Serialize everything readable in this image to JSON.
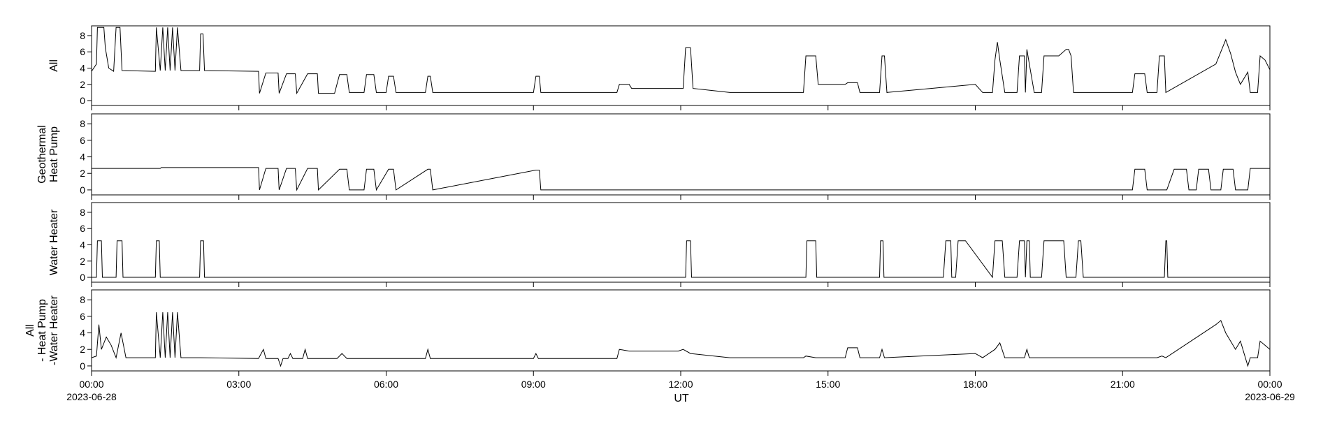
{
  "chart_data": {
    "type": "line",
    "xlabel": "UT",
    "x_ticks": [
      {
        "t": 0,
        "label": "00:00",
        "sublabel": "2023-06-28"
      },
      {
        "t": 3,
        "label": "03:00",
        "sublabel": ""
      },
      {
        "t": 6,
        "label": "06:00",
        "sublabel": ""
      },
      {
        "t": 9,
        "label": "09:00",
        "sublabel": ""
      },
      {
        "t": 12,
        "label": "12:00",
        "sublabel": ""
      },
      {
        "t": 15,
        "label": "15:00",
        "sublabel": ""
      },
      {
        "t": 18,
        "label": "18:00",
        "sublabel": ""
      },
      {
        "t": 21,
        "label": "21:00",
        "sublabel": ""
      },
      {
        "t": 24,
        "label": "00:00",
        "sublabel": "2023-06-29"
      }
    ],
    "xlim": [
      0,
      24
    ],
    "ylim": [
      -0.6,
      9.2
    ],
    "y_ticks": [
      0,
      2,
      4,
      6,
      8
    ],
    "panels": [
      {
        "ylabel_lines": [
          "All"
        ],
        "points": [
          [
            0,
            3.6
          ],
          [
            0.1,
            4.5
          ],
          [
            0.12,
            9
          ],
          [
            0.25,
            9
          ],
          [
            0.28,
            6.5
          ],
          [
            0.35,
            4
          ],
          [
            0.45,
            3.6
          ],
          [
            0.5,
            9
          ],
          [
            0.58,
            9
          ],
          [
            0.62,
            3.7
          ],
          [
            1.3,
            3.6
          ],
          [
            1.32,
            9
          ],
          [
            1.4,
            3.7
          ],
          [
            1.45,
            9
          ],
          [
            1.5,
            3.7
          ],
          [
            1.55,
            9
          ],
          [
            1.6,
            3.7
          ],
          [
            1.65,
            9
          ],
          [
            1.7,
            3.7
          ],
          [
            1.75,
            9
          ],
          [
            1.82,
            3.7
          ],
          [
            2.2,
            3.7
          ],
          [
            2.22,
            8.2
          ],
          [
            2.27,
            8.2
          ],
          [
            2.3,
            3.7
          ],
          [
            3.4,
            3.6
          ],
          [
            3.42,
            0.9
          ],
          [
            3.55,
            3.4
          ],
          [
            3.8,
            3.4
          ],
          [
            3.82,
            0.9
          ],
          [
            3.97,
            3.3
          ],
          [
            4.15,
            3.3
          ],
          [
            4.18,
            0.9
          ],
          [
            4.4,
            3.3
          ],
          [
            4.6,
            3.3
          ],
          [
            4.62,
            0.9
          ],
          [
            4.95,
            0.9
          ],
          [
            5.05,
            3.2
          ],
          [
            5.2,
            3.2
          ],
          [
            5.25,
            1
          ],
          [
            5.55,
            1
          ],
          [
            5.6,
            3.2
          ],
          [
            5.75,
            3.2
          ],
          [
            5.8,
            1
          ],
          [
            6,
            1
          ],
          [
            6.05,
            3
          ],
          [
            6.15,
            3
          ],
          [
            6.2,
            1
          ],
          [
            6.8,
            1
          ],
          [
            6.85,
            3
          ],
          [
            6.9,
            3
          ],
          [
            6.95,
            1
          ],
          [
            9,
            1
          ],
          [
            9.05,
            3
          ],
          [
            9.12,
            3
          ],
          [
            9.15,
            1
          ],
          [
            10.7,
            1
          ],
          [
            10.75,
            2
          ],
          [
            10.95,
            2
          ],
          [
            11,
            1.5
          ],
          [
            11.95,
            1.5
          ],
          [
            12.05,
            1.5
          ],
          [
            12.1,
            6.5
          ],
          [
            12.2,
            6.5
          ],
          [
            12.25,
            1.5
          ],
          [
            13,
            1
          ],
          [
            14.5,
            1
          ],
          [
            14.55,
            5.5
          ],
          [
            14.75,
            5.5
          ],
          [
            14.8,
            2
          ],
          [
            15.35,
            2
          ],
          [
            15.4,
            2.2
          ],
          [
            15.6,
            2.2
          ],
          [
            15.65,
            1
          ],
          [
            16.05,
            1
          ],
          [
            16.1,
            5.5
          ],
          [
            16.15,
            5.5
          ],
          [
            16.2,
            1
          ],
          [
            18,
            2
          ],
          [
            18.15,
            1
          ],
          [
            18.35,
            1
          ],
          [
            18.4,
            5
          ],
          [
            18.45,
            7.2
          ],
          [
            18.5,
            5
          ],
          [
            18.6,
            1
          ],
          [
            18.85,
            1
          ],
          [
            18.9,
            5.5
          ],
          [
            19,
            5.5
          ],
          [
            19.02,
            1
          ],
          [
            19.05,
            6.3
          ],
          [
            19.1,
            4.5
          ],
          [
            19.2,
            1
          ],
          [
            19.35,
            1
          ],
          [
            19.4,
            5.5
          ],
          [
            19.7,
            5.5
          ],
          [
            19.85,
            6.3
          ],
          [
            19.9,
            6.3
          ],
          [
            19.95,
            5.5
          ],
          [
            20,
            1
          ],
          [
            20.95,
            1
          ],
          [
            21.2,
            1
          ],
          [
            21.25,
            3.3
          ],
          [
            21.45,
            3.3
          ],
          [
            21.5,
            1
          ],
          [
            21.7,
            1
          ],
          [
            21.75,
            5.5
          ],
          [
            21.85,
            5.5
          ],
          [
            21.88,
            1
          ],
          [
            22.9,
            4.5
          ],
          [
            23,
            6
          ],
          [
            23.1,
            7.5
          ],
          [
            23.2,
            5.8
          ],
          [
            23.3,
            3.5
          ],
          [
            23.4,
            2
          ],
          [
            23.55,
            3.5
          ],
          [
            23.6,
            1
          ],
          [
            23.75,
            1
          ],
          [
            23.8,
            5.5
          ],
          [
            23.9,
            5
          ],
          [
            24,
            3.8
          ]
        ]
      },
      {
        "ylabel_lines": [
          "Geothermal",
          "Heat Pump"
        ],
        "points": [
          [
            0,
            2.6
          ],
          [
            1.4,
            2.6
          ],
          [
            1.42,
            2.7
          ],
          [
            3.4,
            2.7
          ],
          [
            3.42,
            0
          ],
          [
            3.55,
            2.6
          ],
          [
            3.8,
            2.6
          ],
          [
            3.82,
            0
          ],
          [
            3.97,
            2.6
          ],
          [
            4.15,
            2.6
          ],
          [
            4.18,
            0
          ],
          [
            4.4,
            2.6
          ],
          [
            4.6,
            2.6
          ],
          [
            4.62,
            0
          ],
          [
            5.05,
            2.5
          ],
          [
            5.2,
            2.5
          ],
          [
            5.25,
            0
          ],
          [
            5.55,
            0
          ],
          [
            5.6,
            2.5
          ],
          [
            5.75,
            2.5
          ],
          [
            5.8,
            0
          ],
          [
            6.05,
            2.5
          ],
          [
            6.15,
            2.5
          ],
          [
            6.2,
            0
          ],
          [
            6.85,
            2.5
          ],
          [
            6.9,
            2.5
          ],
          [
            6.95,
            0
          ],
          [
            9.05,
            2.4
          ],
          [
            9.12,
            2.4
          ],
          [
            9.15,
            0
          ],
          [
            21.2,
            0
          ],
          [
            21.25,
            2.5
          ],
          [
            21.45,
            2.5
          ],
          [
            21.5,
            0
          ],
          [
            21.9,
            0
          ],
          [
            22.05,
            2.5
          ],
          [
            22.3,
            2.5
          ],
          [
            22.35,
            0
          ],
          [
            22.5,
            0
          ],
          [
            22.55,
            2.5
          ],
          [
            22.75,
            2.5
          ],
          [
            22.8,
            0
          ],
          [
            23,
            0
          ],
          [
            23.05,
            2.5
          ],
          [
            23.25,
            2.5
          ],
          [
            23.3,
            0
          ],
          [
            23.55,
            0
          ],
          [
            23.6,
            2.6
          ],
          [
            24,
            2.6
          ]
        ]
      },
      {
        "ylabel_lines": [
          "Water Heater"
        ],
        "points": [
          [
            0,
            0
          ],
          [
            0.1,
            0
          ],
          [
            0.12,
            4.5
          ],
          [
            0.2,
            4.5
          ],
          [
            0.22,
            0
          ],
          [
            0.5,
            0
          ],
          [
            0.52,
            4.5
          ],
          [
            0.62,
            4.5
          ],
          [
            0.64,
            0
          ],
          [
            1.3,
            0
          ],
          [
            1.32,
            4.5
          ],
          [
            1.38,
            4.5
          ],
          [
            1.4,
            0
          ],
          [
            2.2,
            0
          ],
          [
            2.22,
            4.5
          ],
          [
            2.28,
            4.5
          ],
          [
            2.3,
            0
          ],
          [
            12.1,
            0
          ],
          [
            12.12,
            4.5
          ],
          [
            12.2,
            4.5
          ],
          [
            12.22,
            0
          ],
          [
            14.55,
            0
          ],
          [
            14.57,
            4.5
          ],
          [
            14.75,
            4.5
          ],
          [
            14.77,
            0
          ],
          [
            16.05,
            0
          ],
          [
            16.07,
            4.5
          ],
          [
            16.12,
            4.5
          ],
          [
            16.14,
            0
          ],
          [
            17.35,
            0
          ],
          [
            17.4,
            4.5
          ],
          [
            17.5,
            4.5
          ],
          [
            17.52,
            0
          ],
          [
            17.6,
            0
          ],
          [
            17.65,
            4.5
          ],
          [
            17.8,
            4.5
          ],
          [
            18.35,
            0
          ],
          [
            18.4,
            4.5
          ],
          [
            18.55,
            4.5
          ],
          [
            18.6,
            0
          ],
          [
            18.85,
            0
          ],
          [
            18.9,
            4.5
          ],
          [
            19,
            4.5
          ],
          [
            19.02,
            0
          ],
          [
            19.05,
            4.5
          ],
          [
            19.1,
            4.5
          ],
          [
            19.12,
            0
          ],
          [
            19.35,
            0
          ],
          [
            19.4,
            4.5
          ],
          [
            19.8,
            4.5
          ],
          [
            19.85,
            0
          ],
          [
            20.05,
            0
          ],
          [
            20.1,
            4.5
          ],
          [
            20.15,
            4.5
          ],
          [
            20.2,
            0
          ],
          [
            21.85,
            0
          ],
          [
            21.88,
            4.5
          ],
          [
            21.9,
            4.5
          ],
          [
            21.92,
            0
          ],
          [
            24,
            0
          ]
        ]
      },
      {
        "ylabel_lines": [
          "All",
          "- Heat Pump",
          "-Water Heater"
        ],
        "points": [
          [
            0,
            1
          ],
          [
            0.1,
            1.2
          ],
          [
            0.15,
            5
          ],
          [
            0.2,
            2
          ],
          [
            0.3,
            3.5
          ],
          [
            0.4,
            2.5
          ],
          [
            0.5,
            1
          ],
          [
            0.6,
            4
          ],
          [
            0.65,
            2.5
          ],
          [
            0.7,
            1
          ],
          [
            1.3,
            1
          ],
          [
            1.32,
            6.5
          ],
          [
            1.4,
            1
          ],
          [
            1.45,
            6.5
          ],
          [
            1.5,
            1
          ],
          [
            1.55,
            6.5
          ],
          [
            1.6,
            1
          ],
          [
            1.65,
            6.5
          ],
          [
            1.7,
            1
          ],
          [
            1.75,
            6.5
          ],
          [
            1.82,
            1
          ],
          [
            2.22,
            1
          ],
          [
            3.4,
            0.9
          ],
          [
            3.5,
            2
          ],
          [
            3.55,
            0.9
          ],
          [
            3.8,
            0.9
          ],
          [
            3.85,
            0
          ],
          [
            3.9,
            0.9
          ],
          [
            4,
            0.9
          ],
          [
            4.05,
            1.5
          ],
          [
            4.1,
            0.9
          ],
          [
            4.3,
            0.9
          ],
          [
            4.35,
            2
          ],
          [
            4.4,
            0.9
          ],
          [
            5,
            0.9
          ],
          [
            5.1,
            1.5
          ],
          [
            5.2,
            0.9
          ],
          [
            6,
            0.9
          ],
          [
            6.8,
            0.9
          ],
          [
            6.85,
            2
          ],
          [
            6.9,
            0.9
          ],
          [
            9,
            0.9
          ],
          [
            9.05,
            1.5
          ],
          [
            9.1,
            0.9
          ],
          [
            10.7,
            0.9
          ],
          [
            10.75,
            2
          ],
          [
            10.95,
            1.8
          ],
          [
            11.95,
            1.8
          ],
          [
            12.05,
            2
          ],
          [
            12.2,
            1.5
          ],
          [
            13,
            1
          ],
          [
            14.5,
            1
          ],
          [
            14.55,
            1.2
          ],
          [
            14.75,
            1
          ],
          [
            15.35,
            1
          ],
          [
            15.4,
            2.2
          ],
          [
            15.6,
            2.2
          ],
          [
            15.65,
            1
          ],
          [
            16.05,
            1
          ],
          [
            16.1,
            2
          ],
          [
            16.15,
            1
          ],
          [
            18,
            1.5
          ],
          [
            18.15,
            1
          ],
          [
            18.4,
            2
          ],
          [
            18.5,
            2.8
          ],
          [
            18.6,
            1
          ],
          [
            19,
            1
          ],
          [
            19.05,
            2
          ],
          [
            19.1,
            1
          ],
          [
            19.8,
            1
          ],
          [
            20.95,
            1
          ],
          [
            21.2,
            1
          ],
          [
            21.7,
            1
          ],
          [
            21.8,
            1.2
          ],
          [
            21.88,
            1
          ],
          [
            22.9,
            5
          ],
          [
            23,
            5.5
          ],
          [
            23.1,
            4
          ],
          [
            23.2,
            3
          ],
          [
            23.3,
            2
          ],
          [
            23.4,
            3
          ],
          [
            23.5,
            1
          ],
          [
            23.55,
            0
          ],
          [
            23.6,
            1
          ],
          [
            23.75,
            1
          ],
          [
            23.8,
            3
          ],
          [
            23.9,
            2.5
          ],
          [
            24,
            2
          ]
        ]
      }
    ]
  }
}
